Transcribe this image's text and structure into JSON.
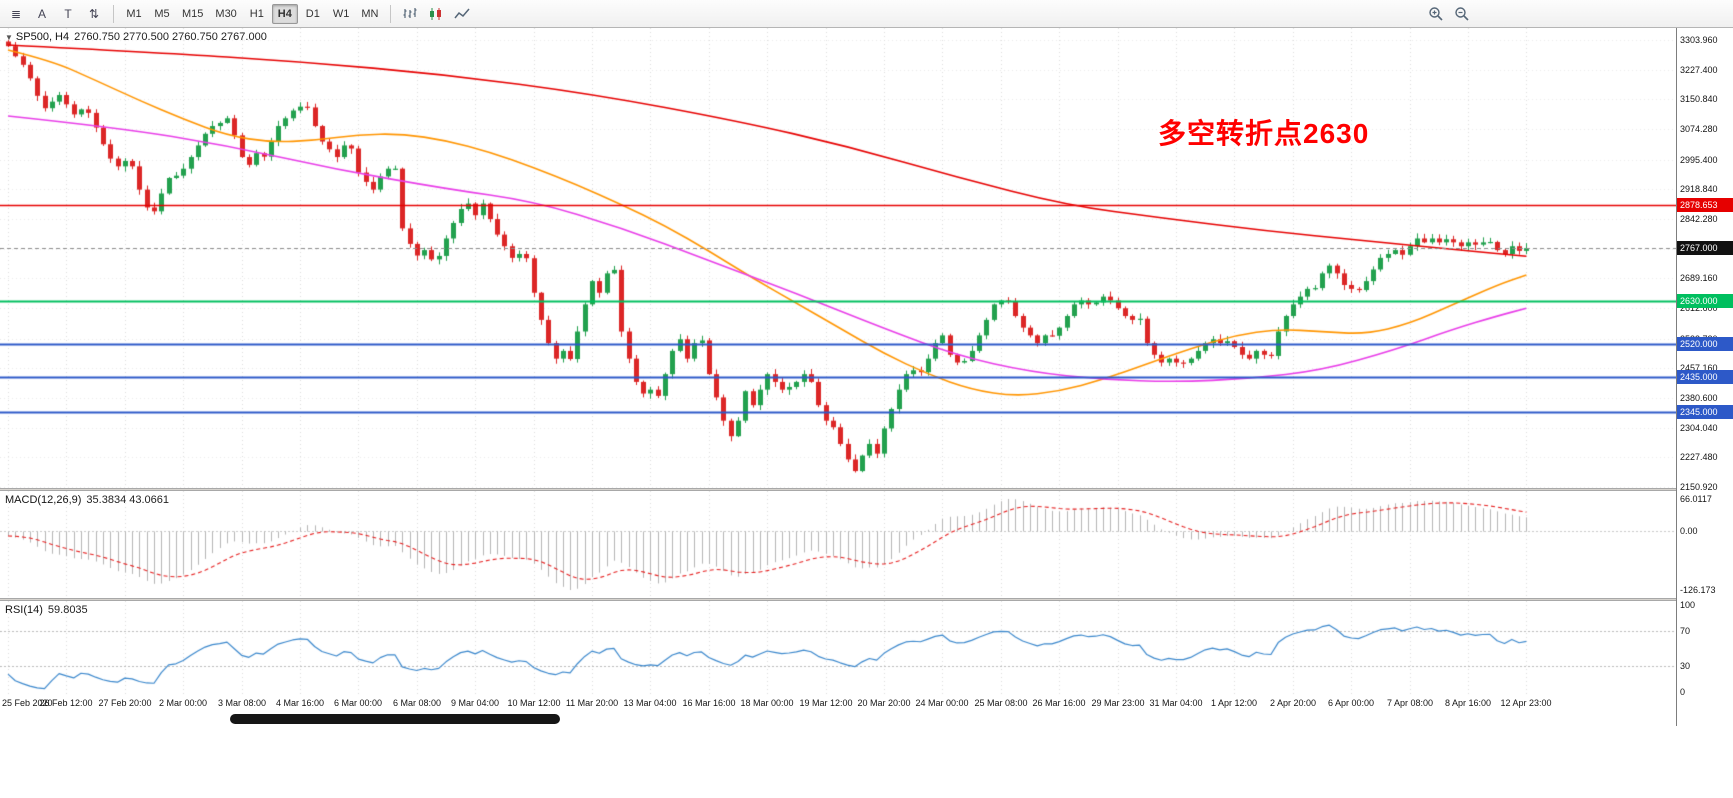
{
  "toolbar": {
    "left_icons": [
      {
        "name": "chart-list-icon",
        "glyph": "≣"
      },
      {
        "name": "letter-a-button",
        "glyph": "A"
      },
      {
        "name": "letter-t-button",
        "glyph": "T"
      },
      {
        "name": "updown-arrows-icon",
        "glyph": "⇅"
      }
    ],
    "timeframes": [
      {
        "label": "M1",
        "active": false
      },
      {
        "label": "M5",
        "active": false
      },
      {
        "label": "M15",
        "active": false
      },
      {
        "label": "M30",
        "active": false
      },
      {
        "label": "H1",
        "active": false
      },
      {
        "label": "H4",
        "active": true
      },
      {
        "label": "D1",
        "active": false
      },
      {
        "label": "W1",
        "active": false
      },
      {
        "label": "MN",
        "active": false
      }
    ],
    "chart_type_icons": [
      "bar-chart-icon",
      "candlestick-chart-icon",
      "line-chart-icon"
    ],
    "right_icons": [
      "zoom-in-icon",
      "zoom-out-icon"
    ]
  },
  "chart": {
    "title_symbol": "SP500, H4",
    "title_ohlc": "2760.750 2770.500 2760.750 2767.000",
    "annotation": {
      "text": "多空转折点2630",
      "color": "#ff0000"
    },
    "y_axis_labels": [
      "3303.960",
      "3227.400",
      "3150.840",
      "3074.280",
      "2995.400",
      "2918.840",
      "2842.280",
      "2765.720",
      "2689.160",
      "2612.600",
      "2533.720",
      "2457.160",
      "2380.600",
      "2304.040",
      "2227.480",
      "2150.920"
    ],
    "x_axis_labels": [
      "25 Feb 2020",
      "26 Feb 12:00",
      "27 Feb 20:00",
      "2 Mar 00:00",
      "3 Mar 08:00",
      "4 Mar 16:00",
      "6 Mar 00:00",
      "6 Mar 08:00",
      "9 Mar 04:00",
      "10 Mar 12:00",
      "11 Mar 20:00",
      "13 Mar 04:00",
      "16 Mar 16:00",
      "18 Mar 00:00",
      "19 Mar 12:00",
      "20 Mar 20:00",
      "24 Mar 00:00",
      "25 Mar 08:00",
      "26 Mar 16:00",
      "29 Mar 23:00",
      "31 Mar 04:00",
      "1 Apr 12:00",
      "2 Apr 20:00",
      "6 Apr 00:00",
      "7 Apr 08:00",
      "8 Apr 16:00",
      "12 Apr 23:00"
    ],
    "levels": [
      {
        "value": 2878.653,
        "label": "2878.653",
        "color": "#e60000",
        "type": "resistance-line",
        "width": 1.6
      },
      {
        "value": 2767.0,
        "label": "2767.000",
        "color": "#111111",
        "type": "current-price",
        "width": 1
      },
      {
        "value": 2630.0,
        "label": "2630.000",
        "color": "#00bf5f",
        "type": "pivot-line",
        "width": 2
      },
      {
        "value": 2520.0,
        "label": "2520.000",
        "color": "#2d59c8",
        "type": "support-line",
        "width": 2
      },
      {
        "value": 2435.0,
        "label": "2435.000",
        "color": "#2d59c8",
        "type": "support-line",
        "width": 2
      },
      {
        "value": 2345.0,
        "label": "2345.000",
        "color": "#2d59c8",
        "type": "support-line",
        "width": 2
      }
    ]
  },
  "chart_data": {
    "type": "candlestick",
    "symbol": "SP500",
    "timeframe": "H4",
    "ohlc_current": {
      "open": 2760.75,
      "high": 2770.5,
      "low": 2760.75,
      "close": 2767.0
    },
    "y_range": [
      2150.92,
      3303.96
    ],
    "first_open": 3300,
    "closes": [
      3288,
      3262,
      3240,
      3205,
      3160,
      3128,
      3145,
      3162,
      3138,
      3112,
      3125,
      3116,
      3078,
      3035,
      2998,
      2978,
      2992,
      2978,
      2918,
      2872,
      2862,
      2908,
      2948,
      2954,
      2972,
      3002,
      3032,
      3062,
      3082,
      3090,
      3102,
      3058,
      3002,
      2982,
      3012,
      3003,
      3042,
      3082,
      3102,
      3122,
      3132,
      3130,
      3082,
      3042,
      3022,
      3002,
      3032,
      3024,
      2962,
      2938,
      2918,
      2952,
      2972,
      2972,
      2818,
      2778,
      2748,
      2762,
      2738,
      2747,
      2792,
      2832,
      2868,
      2882,
      2852,
      2882,
      2842,
      2802,
      2772,
      2742,
      2752,
      2741,
      2652,
      2582,
      2522,
      2482,
      2502,
      2481,
      2552,
      2622,
      2682,
      2652,
      2702,
      2711,
      2552,
      2482,
      2422,
      2392,
      2402,
      2386,
      2442,
      2502,
      2532,
      2482,
      2522,
      2529,
      2442,
      2382,
      2322,
      2282,
      2322,
      2398,
      2362,
      2402,
      2442,
      2422,
      2402,
      2409,
      2422,
      2442,
      2422,
      2362,
      2322,
      2305,
      2262,
      2222,
      2192,
      2232,
      2262,
      2237,
      2302,
      2352,
      2402,
      2442,
      2452,
      2447,
      2482,
      2522,
      2542,
      2492,
      2472,
      2476,
      2502,
      2542,
      2582,
      2622,
      2632,
      2630,
      2592,
      2562,
      2542,
      2522,
      2542,
      2541,
      2562,
      2592,
      2622,
      2632,
      2622,
      2627,
      2642,
      2632,
      2612,
      2592,
      2582,
      2585,
      2522,
      2492,
      2472,
      2482,
      2472,
      2471,
      2482,
      2502,
      2522,
      2532,
      2522,
      2527,
      2512,
      2492,
      2482,
      2502,
      2492,
      2489,
      2552,
      2592,
      2622,
      2642,
      2662,
      2664,
      2702,
      2722,
      2702,
      2672,
      2662,
      2659,
      2682,
      2712,
      2742,
      2752,
      2762,
      2750,
      2772,
      2792,
      2782,
      2792,
      2782,
      2790,
      2782,
      2772,
      2782,
      2776,
      2782,
      2783,
      2762,
      2752,
      2772,
      2760,
      2767
    ],
    "candle_colors": {
      "up": "#22a14e",
      "down": "#dc2626"
    },
    "moving_averages": [
      {
        "name": "fast-ma",
        "color": "#ff9500",
        "points": [
          [
            0,
            3278
          ],
          [
            6,
            3250
          ],
          [
            12,
            3200
          ],
          [
            18,
            3148
          ],
          [
            24,
            3100
          ],
          [
            30,
            3058
          ],
          [
            36,
            3040
          ],
          [
            42,
            3045
          ],
          [
            48,
            3060
          ],
          [
            54,
            3062
          ],
          [
            60,
            3045
          ],
          [
            66,
            3015
          ],
          [
            72,
            2975
          ],
          [
            78,
            2930
          ],
          [
            84,
            2880
          ],
          [
            90,
            2825
          ],
          [
            96,
            2760
          ],
          [
            102,
            2690
          ],
          [
            108,
            2625
          ],
          [
            114,
            2560
          ],
          [
            120,
            2495
          ],
          [
            126,
            2442
          ],
          [
            132,
            2402
          ],
          [
            138,
            2385
          ],
          [
            144,
            2398
          ],
          [
            150,
            2428
          ],
          [
            156,
            2468
          ],
          [
            162,
            2508
          ],
          [
            168,
            2542
          ],
          [
            174,
            2558
          ],
          [
            180,
            2552
          ],
          [
            186,
            2545
          ],
          [
            192,
            2572
          ],
          [
            198,
            2622
          ],
          [
            204,
            2672
          ],
          [
            208,
            2698
          ]
        ]
      },
      {
        "name": "medium-ma",
        "color": "#e83ee8",
        "points": [
          [
            0,
            3108
          ],
          [
            15,
            3078
          ],
          [
            30,
            3032
          ],
          [
            45,
            2970
          ],
          [
            60,
            2920
          ],
          [
            72,
            2888
          ],
          [
            84,
            2820
          ],
          [
            96,
            2735
          ],
          [
            108,
            2650
          ],
          [
            120,
            2560
          ],
          [
            130,
            2490
          ],
          [
            140,
            2448
          ],
          [
            150,
            2428
          ],
          [
            160,
            2422
          ],
          [
            170,
            2430
          ],
          [
            180,
            2452
          ],
          [
            190,
            2505
          ],
          [
            198,
            2558
          ],
          [
            204,
            2592
          ],
          [
            208,
            2612
          ]
        ]
      },
      {
        "name": "slow-ma",
        "color": "#e60000",
        "points": [
          [
            0,
            3291
          ],
          [
            20,
            3272
          ],
          [
            40,
            3248
          ],
          [
            60,
            3215
          ],
          [
            80,
            3165
          ],
          [
            100,
            3095
          ],
          [
            115,
            3030
          ],
          [
            130,
            2950
          ],
          [
            145,
            2878
          ],
          [
            158,
            2845
          ],
          [
            172,
            2812
          ],
          [
            186,
            2786
          ],
          [
            199,
            2762
          ],
          [
            208,
            2746
          ]
        ]
      }
    ],
    "macd": {
      "label": "MACD(12,26,9)",
      "values": "35.3834 43.0661",
      "axis_labels": [
        "66.0117",
        "0.00",
        "-126.173"
      ],
      "histogram_color": "#b5b5b5",
      "signal_color": "#e62020"
    },
    "rsi": {
      "label": "RSI(14)",
      "value": "59.8035",
      "axis_labels": [
        "100",
        "70",
        "30",
        "0"
      ],
      "levels": [
        70,
        30
      ],
      "line_color": "#3a87cc"
    }
  }
}
